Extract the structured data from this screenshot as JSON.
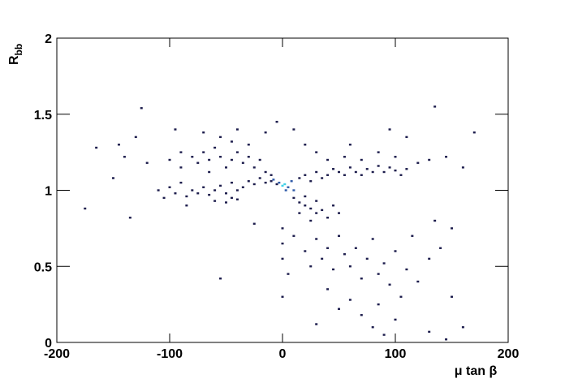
{
  "chart_data": {
    "type": "scatter",
    "xlabel": "μ tan β",
    "ylabel": {
      "main": "R",
      "sub": "bb"
    },
    "xlim": [
      -200,
      200
    ],
    "ylim": [
      0,
      2
    ],
    "xticks": [
      -200,
      -100,
      0,
      100,
      200
    ],
    "yticks": [
      0,
      0.5,
      1,
      1.5,
      2
    ],
    "series": [
      {
        "color": "#1c1c4c",
        "x": [
          -175,
          -165,
          -145,
          -140,
          -130,
          -125,
          -120,
          -110,
          -105,
          -135,
          -150,
          -95,
          -90,
          -85,
          -70,
          -55,
          -45,
          -40,
          -25,
          -15,
          -5,
          -80,
          -75,
          -70,
          -65,
          -60,
          -55,
          -50,
          -45,
          -40,
          -35,
          -30,
          -25,
          -20,
          -15,
          -10,
          -5,
          -90,
          -85,
          -100,
          -95,
          -60,
          -50,
          -40,
          -80,
          -75,
          -70,
          -65,
          -60,
          -55,
          -50,
          -45,
          -40,
          -35,
          -30,
          -25,
          -20,
          -15,
          -10,
          -45,
          -55,
          -30,
          -65,
          -100,
          -90,
          15,
          20,
          25,
          30,
          35,
          40,
          45,
          50,
          55,
          60,
          65,
          70,
          75,
          80,
          85,
          90,
          95,
          100,
          105,
          110,
          40,
          55,
          70,
          85,
          100,
          120,
          130,
          145,
          160,
          170,
          135,
          110,
          95,
          60,
          30,
          20,
          10,
          10,
          15,
          20,
          25,
          30,
          35,
          40,
          20,
          30,
          45,
          50,
          15,
          25,
          0,
          0,
          0,
          5,
          0,
          10,
          20,
          25,
          30,
          35,
          40,
          45,
          50,
          55,
          60,
          65,
          70,
          75,
          80,
          85,
          90,
          95,
          100,
          105,
          110,
          120,
          130,
          140,
          150,
          60,
          70,
          80,
          90,
          100,
          130,
          145,
          160,
          40,
          50,
          30,
          85,
          115,
          135,
          150
        ],
        "values": [
          0.88,
          1.28,
          1.3,
          1.22,
          1.35,
          1.54,
          1.18,
          1.0,
          0.95,
          0.82,
          1.08,
          1.4,
          1.25,
          0.9,
          1.38,
          0.42,
          0.95,
          1.4,
          0.78,
          1.38,
          1.45,
          1.0,
          0.98,
          1.02,
          0.97,
          1.0,
          1.03,
          0.98,
          1.05,
          1.0,
          1.02,
          1.06,
          1.04,
          1.08,
          1.05,
          1.06,
          1.04,
          1.05,
          0.96,
          1.02,
          0.98,
          0.93,
          0.92,
          0.94,
          1.22,
          1.18,
          1.25,
          1.2,
          1.28,
          1.22,
          1.15,
          1.2,
          1.25,
          1.18,
          1.22,
          1.15,
          1.2,
          1.12,
          1.1,
          1.32,
          1.35,
          1.3,
          1.12,
          1.2,
          1.15,
          1.08,
          1.1,
          1.06,
          1.12,
          1.08,
          1.1,
          1.14,
          1.12,
          1.1,
          1.15,
          1.12,
          1.1,
          1.14,
          1.12,
          1.16,
          1.12,
          1.15,
          1.13,
          1.1,
          1.14,
          1.2,
          1.22,
          1.2,
          1.25,
          1.22,
          1.18,
          1.2,
          1.22,
          1.15,
          1.38,
          1.55,
          1.35,
          1.4,
          1.3,
          1.25,
          1.3,
          1.4,
          0.95,
          0.92,
          0.9,
          0.88,
          0.85,
          0.87,
          0.82,
          0.96,
          0.93,
          0.9,
          0.85,
          0.85,
          0.8,
          0.75,
          0.65,
          0.55,
          0.45,
          0.3,
          0.7,
          0.6,
          0.5,
          0.68,
          0.55,
          0.62,
          0.48,
          0.7,
          0.58,
          0.5,
          0.62,
          0.42,
          0.55,
          0.68,
          0.45,
          0.52,
          0.38,
          0.6,
          0.3,
          0.48,
          0.4,
          0.55,
          0.62,
          0.3,
          0.28,
          0.18,
          0.1,
          0.05,
          0.15,
          0.07,
          0.02,
          0.1,
          0.35,
          0.22,
          0.12,
          0.25,
          0.7,
          0.8,
          0.75
        ]
      },
      {
        "color": "#2e5aa8",
        "x": [
          8,
          -8,
          10,
          -3,
          5,
          3
        ],
        "values": [
          1.06,
          1.07,
          1.0,
          1.05,
          1.02,
          1.0
        ]
      },
      {
        "color": "#3fd0e8",
        "x": [
          0,
          2
        ],
        "values": [
          1.03,
          1.04
        ]
      }
    ]
  }
}
